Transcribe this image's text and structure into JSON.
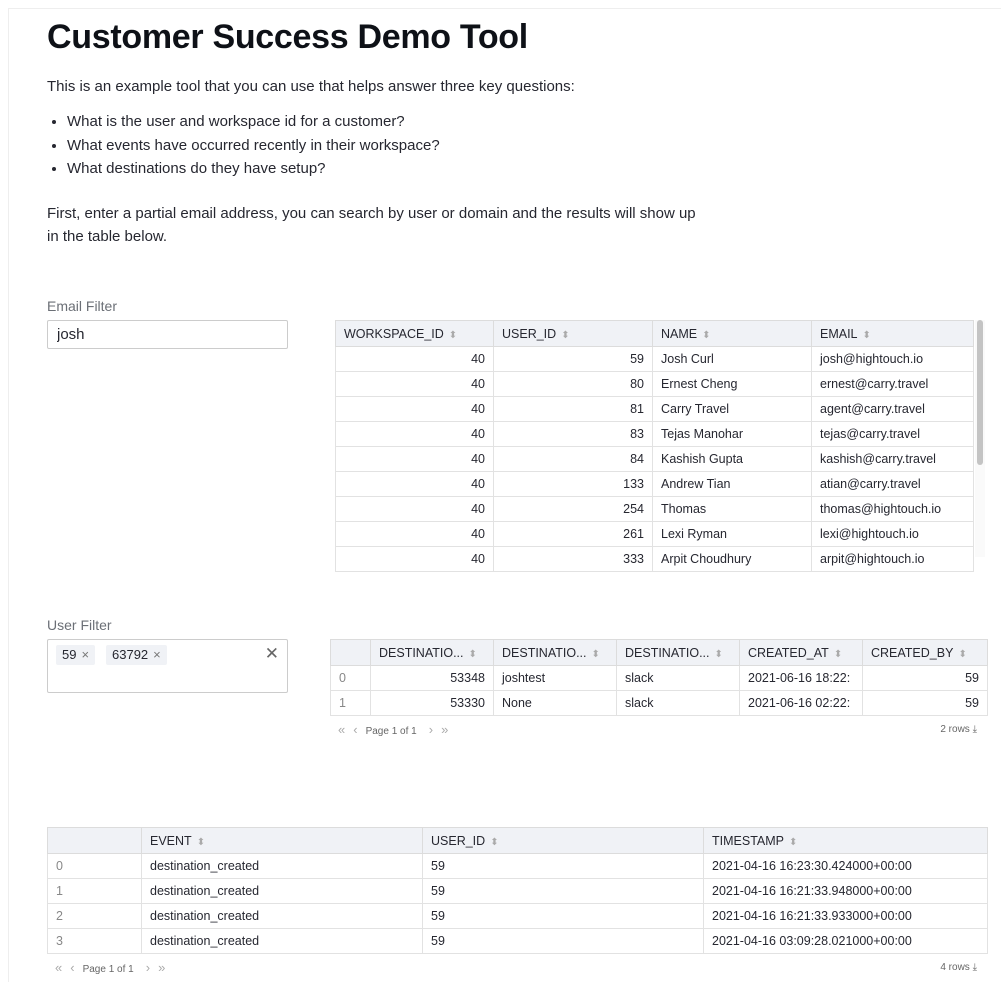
{
  "title": "Customer Success Demo Tool",
  "intro": "This is an example tool that you can use that helps answer three key questions:",
  "questions": [
    "What is the user and workspace id for a customer?",
    "What events have occurred recently in their workspace?",
    "What destinations do they have setup?"
  ],
  "instructions": "First, enter a partial email address, you can search by user or domain and the results will show up in the table below.",
  "email_filter": {
    "label": "Email Filter",
    "value": "josh"
  },
  "user_filter": {
    "label": "User Filter",
    "tags": [
      "59",
      "63792"
    ],
    "remove_icon": "×",
    "clear_icon": "✕"
  },
  "sort_icon": "⬍",
  "users_table": {
    "columns": [
      "WORKSPACE_ID",
      "USER_ID",
      "NAME",
      "EMAIL"
    ],
    "numeric": [
      true,
      true,
      false,
      false
    ],
    "rows": [
      [
        "40",
        "59",
        "Josh Curl",
        "josh@hightouch.io"
      ],
      [
        "40",
        "80",
        "Ernest Cheng",
        "ernest@carry.travel"
      ],
      [
        "40",
        "81",
        "Carry Travel",
        "agent@carry.travel"
      ],
      [
        "40",
        "83",
        "Tejas Manohar",
        "tejas@carry.travel"
      ],
      [
        "40",
        "84",
        "Kashish Gupta",
        "kashish@carry.travel"
      ],
      [
        "40",
        "133",
        "Andrew Tian",
        "atian@carry.travel"
      ],
      [
        "40",
        "254",
        "Thomas",
        "thomas@hightouch.io"
      ],
      [
        "40",
        "261",
        "Lexi Ryman",
        "lexi@hightouch.io"
      ],
      [
        "40",
        "333",
        "Arpit Choudhury",
        "arpit@hightouch.io"
      ]
    ]
  },
  "destinations_table": {
    "columns": [
      "",
      "DESTINATIO...",
      "DESTINATIO...",
      "DESTINATIO...",
      "CREATED_AT",
      "CREATED_BY"
    ],
    "numeric": [
      false,
      true,
      false,
      false,
      false,
      true
    ],
    "rows": [
      [
        "0",
        "53348",
        "joshtest",
        "slack",
        "2021-06-16 18:22:",
        "59"
      ],
      [
        "1",
        "53330",
        "None",
        "slack",
        "2021-06-16 02:22:",
        "59"
      ]
    ],
    "pager": "Page 1 of 1",
    "row_count": "2 rows"
  },
  "events_table": {
    "columns": [
      "",
      "EVENT",
      "USER_ID",
      "TIMESTAMP"
    ],
    "numeric": [
      false,
      false,
      false,
      false
    ],
    "rows": [
      [
        "0",
        "destination_created",
        "59",
        "2021-04-16 16:23:30.424000+00:00"
      ],
      [
        "1",
        "destination_created",
        "59",
        "2021-04-16 16:21:33.948000+00:00"
      ],
      [
        "2",
        "destination_created",
        "59",
        "2021-04-16 16:21:33.933000+00:00"
      ],
      [
        "3",
        "destination_created",
        "59",
        "2021-04-16 03:09:28.021000+00:00"
      ]
    ],
    "pager": "Page 1 of 1",
    "row_count": "4 rows"
  },
  "pager_icons": {
    "first": "«",
    "prev": "‹",
    "next": "›",
    "last": "»",
    "download": "⤓"
  }
}
